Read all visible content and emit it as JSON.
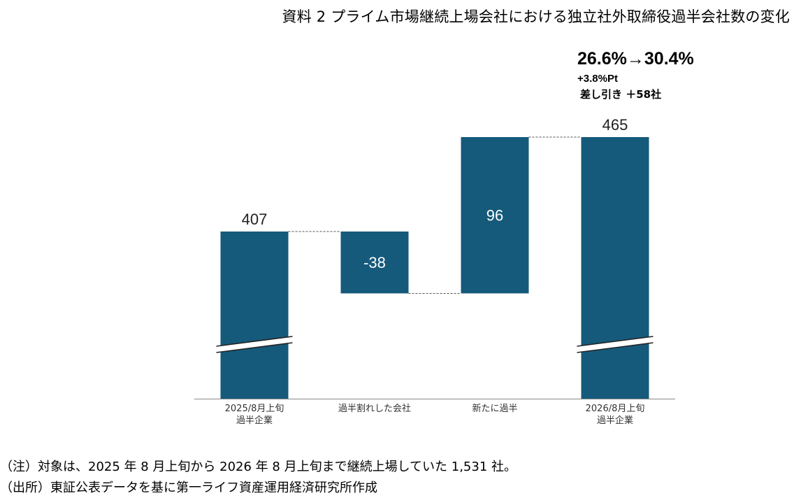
{
  "title": "資料 2 プライム市場継続上場会社における独立社外取締役過半会社数の変化",
  "annotation": {
    "ratio": "26.6%→30.4%",
    "delta_pt": "+3.8%Pt",
    "net": "差し引き ＋58社"
  },
  "notes": {
    "note": "（注）対象は、2025 年 8 月上旬から 2026 年 8 月上旬まで継続上場していた 1,531 社。",
    "source": "（出所）東証公表データを基に第一ライフ資産運用経済研究所作成"
  },
  "colors": {
    "bar": "#155a7a",
    "connector": "#555555",
    "axis": "#888888"
  },
  "chart_data": {
    "type": "bar",
    "subtype": "waterfall",
    "categories": [
      [
        "2025/8月上旬",
        "過半企業"
      ],
      [
        "過半割れした会社"
      ],
      [
        "新たに過半"
      ],
      [
        "2026/8月上旬",
        "過半企業"
      ]
    ],
    "values": [
      407,
      -38,
      96,
      465
    ],
    "value_labels": [
      "407",
      "-38",
      "96",
      "465"
    ],
    "kinds": [
      "total",
      "delta",
      "delta",
      "total"
    ],
    "axis_break": true,
    "grid": false,
    "legend": "none"
  }
}
